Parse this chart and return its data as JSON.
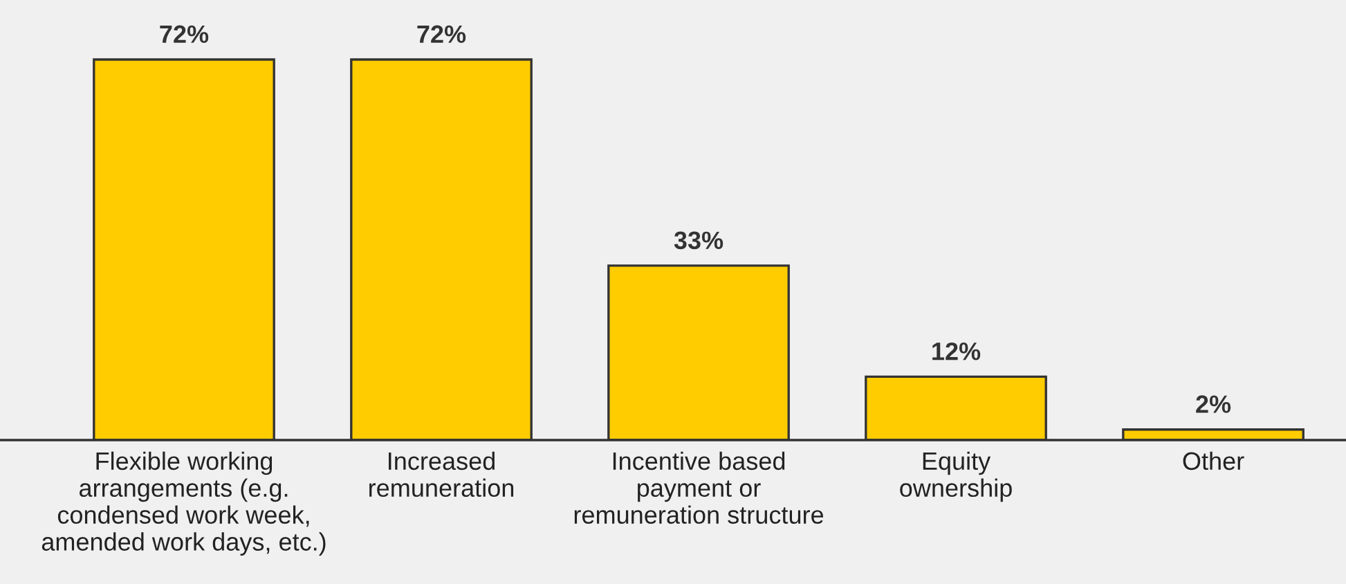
{
  "chart_data": {
    "type": "bar",
    "categories": [
      "Flexible working\narrangements (e.g.\ncondensed work week,\namended work days, etc.)",
      "Increased\nremuneration",
      "Incentive based\npayment or\nremuneration structure",
      "Equity\nownership",
      "Other"
    ],
    "values": [
      72,
      72,
      33,
      12,
      2
    ],
    "value_labels": [
      "72%",
      "72%",
      "33%",
      "12%",
      "2%"
    ],
    "color": "#ffcc00",
    "grid": false,
    "legend": false
  }
}
